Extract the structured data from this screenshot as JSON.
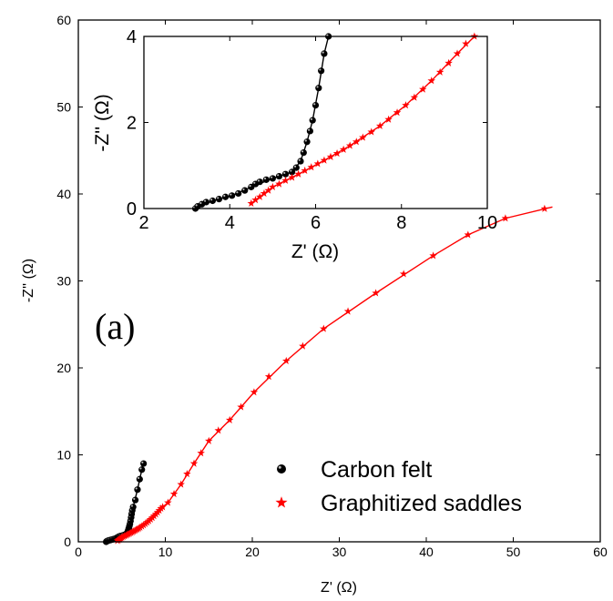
{
  "colors": {
    "felt": "#000000",
    "saddles": "#ff0000",
    "axis": "#000000"
  },
  "chart_data": {
    "type": "scatter",
    "panel_label": "(a)",
    "main": {
      "xlabel": "Z' (Ω)",
      "ylabel": "-Z'' (Ω)",
      "xlim": [
        0,
        60
      ],
      "ylim": [
        0,
        60
      ],
      "xticks": [
        0,
        10,
        20,
        30,
        40,
        50,
        60
      ],
      "yticks": [
        0,
        10,
        20,
        30,
        40,
        50,
        60
      ]
    },
    "inset": {
      "xlabel": "Z' (Ω)",
      "ylabel": "-Z'' (Ω)",
      "xlim": [
        2,
        10
      ],
      "ylim": [
        0,
        4
      ],
      "xticks": [
        2,
        4,
        6,
        8,
        10
      ],
      "yticks": [
        0,
        2,
        4
      ]
    },
    "legend": {
      "placement": "bottom-right"
    },
    "series": [
      {
        "name": "Carbon felt",
        "marker": "circle",
        "color": "#000000",
        "points": [
          [
            3.2,
            0.0
          ],
          [
            3.25,
            0.05
          ],
          [
            3.35,
            0.1
          ],
          [
            3.45,
            0.15
          ],
          [
            3.6,
            0.18
          ],
          [
            3.75,
            0.22
          ],
          [
            3.9,
            0.27
          ],
          [
            4.05,
            0.3
          ],
          [
            4.2,
            0.35
          ],
          [
            4.35,
            0.42
          ],
          [
            4.5,
            0.5
          ],
          [
            4.6,
            0.57
          ],
          [
            4.7,
            0.62
          ],
          [
            4.85,
            0.67
          ],
          [
            5.0,
            0.7
          ],
          [
            5.15,
            0.75
          ],
          [
            5.3,
            0.8
          ],
          [
            5.45,
            0.85
          ],
          [
            5.55,
            0.95
          ],
          [
            5.65,
            1.1
          ],
          [
            5.72,
            1.3
          ],
          [
            5.8,
            1.55
          ],
          [
            5.87,
            1.8
          ],
          [
            5.93,
            2.05
          ],
          [
            6.0,
            2.4
          ],
          [
            6.07,
            2.8
          ],
          [
            6.13,
            3.2
          ],
          [
            6.2,
            3.6
          ],
          [
            6.3,
            4.0
          ],
          [
            6.55,
            4.8
          ],
          [
            6.8,
            6.0
          ],
          [
            7.05,
            7.2
          ],
          [
            7.3,
            8.3
          ],
          [
            7.5,
            9.0
          ]
        ],
        "fit": [
          [
            3.2,
            0.0
          ],
          [
            3.6,
            0.18
          ],
          [
            4.05,
            0.3
          ],
          [
            4.5,
            0.5
          ],
          [
            5.0,
            0.7
          ],
          [
            5.45,
            0.85
          ],
          [
            5.65,
            1.1
          ],
          [
            5.8,
            1.55
          ],
          [
            5.93,
            2.05
          ],
          [
            6.07,
            2.8
          ],
          [
            6.2,
            3.6
          ],
          [
            6.3,
            4.0
          ],
          [
            6.8,
            6.0
          ],
          [
            7.3,
            8.3
          ],
          [
            7.5,
            9.0
          ]
        ]
      },
      {
        "name": "Graphitized saddles",
        "marker": "star",
        "color": "#ff0000",
        "points": [
          [
            4.5,
            0.12
          ],
          [
            4.6,
            0.2
          ],
          [
            4.7,
            0.27
          ],
          [
            4.8,
            0.35
          ],
          [
            4.9,
            0.42
          ],
          [
            5.0,
            0.5
          ],
          [
            5.15,
            0.57
          ],
          [
            5.3,
            0.65
          ],
          [
            5.45,
            0.72
          ],
          [
            5.6,
            0.8
          ],
          [
            5.75,
            0.88
          ],
          [
            5.9,
            0.96
          ],
          [
            6.05,
            1.04
          ],
          [
            6.2,
            1.12
          ],
          [
            6.35,
            1.2
          ],
          [
            6.5,
            1.28
          ],
          [
            6.65,
            1.37
          ],
          [
            6.8,
            1.46
          ],
          [
            6.95,
            1.55
          ],
          [
            7.1,
            1.65
          ],
          [
            7.3,
            1.78
          ],
          [
            7.5,
            1.92
          ],
          [
            7.7,
            2.07
          ],
          [
            7.9,
            2.23
          ],
          [
            8.1,
            2.4
          ],
          [
            8.3,
            2.58
          ],
          [
            8.5,
            2.77
          ],
          [
            8.7,
            2.97
          ],
          [
            8.9,
            3.17
          ],
          [
            9.1,
            3.38
          ],
          [
            9.3,
            3.6
          ],
          [
            9.5,
            3.83
          ],
          [
            9.7,
            4.0
          ],
          [
            10.3,
            4.5
          ],
          [
            11.0,
            5.5
          ],
          [
            11.8,
            6.6
          ],
          [
            12.5,
            7.8
          ],
          [
            13.3,
            9.0
          ],
          [
            14.1,
            10.2
          ],
          [
            15.0,
            11.6
          ],
          [
            16.1,
            12.8
          ],
          [
            17.4,
            14.0
          ],
          [
            18.7,
            15.5
          ],
          [
            20.2,
            17.2
          ],
          [
            21.9,
            19.0
          ],
          [
            23.9,
            20.8
          ],
          [
            25.8,
            22.5
          ],
          [
            28.2,
            24.5
          ],
          [
            31.0,
            26.5
          ],
          [
            34.2,
            28.6
          ],
          [
            37.4,
            30.8
          ],
          [
            40.8,
            32.9
          ],
          [
            44.8,
            35.3
          ],
          [
            49.1,
            37.2
          ],
          [
            53.6,
            38.3
          ]
        ],
        "fit": [
          [
            4.5,
            0.12
          ],
          [
            5.0,
            0.5
          ],
          [
            5.6,
            0.8
          ],
          [
            6.2,
            1.12
          ],
          [
            6.8,
            1.46
          ],
          [
            7.5,
            1.92
          ],
          [
            8.1,
            2.4
          ],
          [
            8.7,
            2.97
          ],
          [
            9.3,
            3.6
          ],
          [
            9.7,
            4.0
          ],
          [
            10.3,
            4.5
          ],
          [
            11.8,
            6.6
          ],
          [
            13.3,
            9.0
          ],
          [
            15.0,
            11.6
          ],
          [
            17.4,
            14.0
          ],
          [
            20.2,
            17.2
          ],
          [
            23.9,
            20.8
          ],
          [
            28.2,
            24.5
          ],
          [
            34.2,
            28.6
          ],
          [
            40.8,
            32.9
          ],
          [
            44.8,
            35.3
          ],
          [
            49.1,
            37.2
          ],
          [
            54.5,
            38.5
          ]
        ]
      }
    ]
  }
}
